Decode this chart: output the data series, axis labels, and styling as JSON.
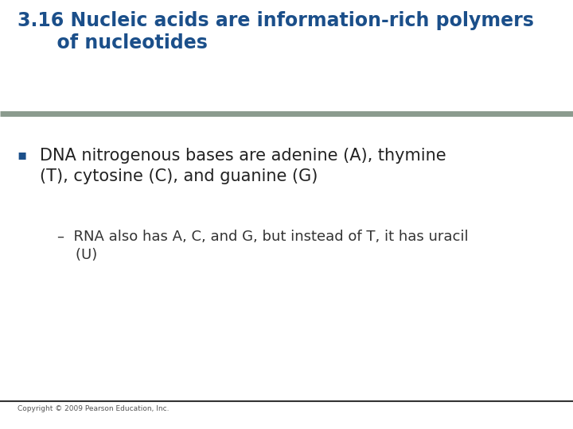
{
  "title_line1": "3.16 Nucleic acids are information-rich polymers",
  "title_line2": "      of nucleotides",
  "title_color": "#1B4F8A",
  "title_fontsize": 17,
  "separator_color": "#8B9B8E",
  "bullet_text": "DNA nitrogenous bases are adenine (A), thymine\n(T), cytosine (C), and guanine (G)",
  "bullet_color": "#222222",
  "bullet_fontsize": 15,
  "bullet_marker": "▪",
  "bullet_marker_color": "#1B4F8A",
  "sub_bullet_line1": "–  RNA also has A, C, and G, but instead of T, it has uracil",
  "sub_bullet_line2": "    (U)",
  "sub_bullet_fontsize": 13,
  "sub_bullet_color": "#333333",
  "copyright_text": "Copyright © 2009 Pearson Education, Inc.",
  "copyright_fontsize": 6.5,
  "copyright_color": "#555555",
  "background_color": "#FFFFFF",
  "bottom_line_color": "#333333"
}
